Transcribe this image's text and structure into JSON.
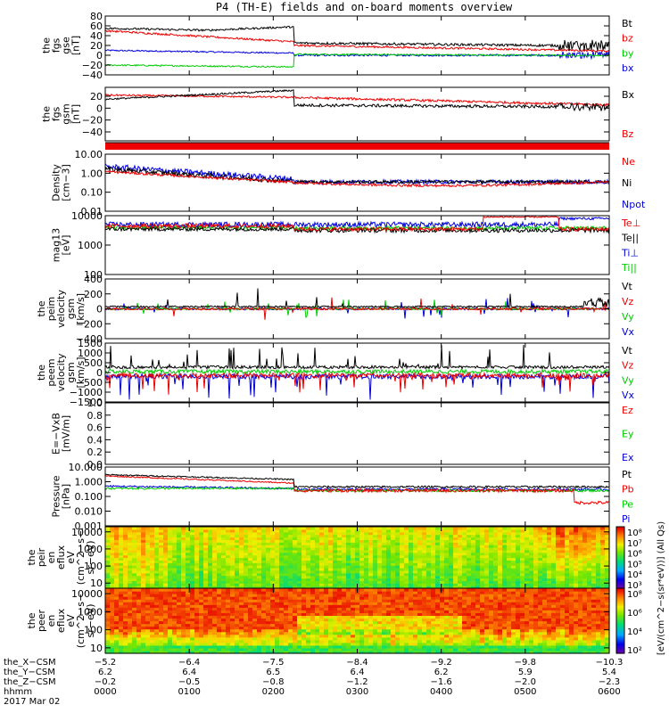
{
  "title": "P4 (TH-E) fields and on-board moments overview",
  "colors": {
    "black": "#000000",
    "red": "#ee0000",
    "green": "#00cc00",
    "blue": "#0000dd",
    "darkred": "#990000"
  },
  "chart_data": [
    {
      "type": "line",
      "id": "fgs_gse",
      "ylabel": [
        "the",
        "fgs",
        "gse",
        "[nT]"
      ],
      "ylim": [
        -40,
        80
      ],
      "yticks": [
        "80",
        "60",
        "40",
        "20",
        "0",
        "−20",
        "−40"
      ],
      "ytick_values": [
        80,
        60,
        40,
        20,
        0,
        -20,
        -40
      ],
      "legend": [
        {
          "name": "Bt",
          "color": "black"
        },
        {
          "name": "bz",
          "color": "red"
        },
        {
          "name": "by",
          "color": "green"
        },
        {
          "name": "bx",
          "color": "blue"
        }
      ]
    },
    {
      "type": "line",
      "id": "fgs_gsm",
      "ylabel": [
        "the",
        "fgs",
        "gsm",
        "[nT]"
      ],
      "ylim": [
        -55,
        35
      ],
      "yticks": [
        "20",
        "0",
        "−20",
        "−40"
      ],
      "ytick_values": [
        20,
        0,
        -20,
        -40
      ],
      "legend": [
        {
          "name": "Bx",
          "color": "black"
        },
        {
          "name": "Bz",
          "color": "red"
        }
      ]
    },
    {
      "type": "line",
      "id": "density",
      "ylabel": [
        "Density",
        "[cm−3]"
      ],
      "scale": "log",
      "ylim": [
        0.01,
        10
      ],
      "yticks": [
        "10.00",
        "1.00",
        "0.10",
        "0.01"
      ],
      "ytick_values": [
        10,
        1,
        0.1,
        0.01
      ],
      "legend": [
        {
          "name": "Ne",
          "color": "red"
        },
        {
          "name": "Ni",
          "color": "black"
        },
        {
          "name": "Npot",
          "color": "blue"
        }
      ]
    },
    {
      "type": "line",
      "id": "temperature",
      "ylabel": [
        "mag13",
        "[eV]"
      ],
      "scale": "log",
      "ylim": [
        100,
        10000
      ],
      "yticks": [
        "10000",
        "1000",
        "100"
      ],
      "ytick_values": [
        10000,
        1000,
        100
      ],
      "legend": [
        {
          "name": "Te⊥",
          "color": "red"
        },
        {
          "name": "Te||",
          "color": "black"
        },
        {
          "name": "Ti⊥",
          "color": "blue"
        },
        {
          "name": "Ti||",
          "color": "green"
        }
      ]
    },
    {
      "type": "line",
      "id": "peim_velocity",
      "ylabel": [
        "the",
        "peim",
        "velocity",
        "gsm",
        "[km/s]"
      ],
      "ylim": [
        -400,
        400
      ],
      "yticks": [
        "400",
        "200",
        "0",
        "−200",
        "−400"
      ],
      "ytick_values": [
        400,
        200,
        0,
        -200,
        -400
      ],
      "legend": [
        {
          "name": "Vt",
          "color": "black"
        },
        {
          "name": "Vz",
          "color": "red"
        },
        {
          "name": "Vy",
          "color": "green"
        },
        {
          "name": "Vx",
          "color": "blue"
        }
      ]
    },
    {
      "type": "line",
      "id": "peem_velocity",
      "ylabel": [
        "the",
        "peem",
        "velocity",
        "gsm",
        "[km/s]"
      ],
      "ylim": [
        -1500,
        1500
      ],
      "yticks": [
        "1500",
        "1000",
        "500",
        "0",
        "−500",
        "−1000",
        "−1500"
      ],
      "ytick_values": [
        1500,
        1000,
        500,
        0,
        -500,
        -1000,
        -1500
      ],
      "legend": [
        {
          "name": "Vt",
          "color": "black"
        },
        {
          "name": "Vz",
          "color": "red"
        },
        {
          "name": "Vy",
          "color": "green"
        },
        {
          "name": "Vx",
          "color": "blue"
        }
      ]
    },
    {
      "type": "line",
      "id": "efield",
      "ylabel": [
        "E=−VxB",
        "[mV/m]"
      ],
      "ylim": [
        0,
        1
      ],
      "yticks": [
        "1.0",
        "0.8",
        "0.6",
        "0.4",
        "0.2",
        "0.0"
      ],
      "ytick_values": [
        1,
        0.8,
        0.6,
        0.4,
        0.2,
        0
      ],
      "legend": [
        {
          "name": "Ez",
          "color": "red"
        },
        {
          "name": "Ey",
          "color": "green"
        },
        {
          "name": "Ex",
          "color": "blue"
        }
      ]
    },
    {
      "type": "line",
      "id": "pressure",
      "ylabel": [
        "Pressure",
        "[nPa]"
      ],
      "scale": "log",
      "ylim": [
        0.001,
        10
      ],
      "yticks": [
        "10.000",
        "1.000",
        "0.100",
        "0.010",
        "0.001"
      ],
      "ytick_values": [
        10,
        1,
        0.1,
        0.01,
        0.001
      ],
      "legend": [
        {
          "name": "Pt",
          "color": "black"
        },
        {
          "name": "Pb",
          "color": "red"
        },
        {
          "name": "Pe",
          "color": "green"
        },
        {
          "name": "Pi",
          "color": "blue"
        }
      ]
    },
    {
      "type": "heatmap",
      "id": "peir_eflux",
      "ylabel": [
        "the",
        "peir",
        "en",
        "eflux",
        "eV",
        "(cm^2−s−",
        "sr−eV)"
      ],
      "scale": "log",
      "ylim": [
        5,
        20000
      ],
      "yticks": [
        "10000",
        "1000",
        "100",
        "10"
      ],
      "ytick_values": [
        10000,
        1000,
        100,
        10
      ],
      "colorbar": {
        "ticks": [
          "10⁸",
          "10⁷",
          "10⁶",
          "10⁵",
          "10⁴",
          "10³"
        ]
      }
    },
    {
      "type": "heatmap",
      "id": "peer_eflux",
      "ylabel": [
        "the",
        "peer",
        "en",
        "eflux",
        "eV",
        "(cm^2−s−",
        "sr−eV)"
      ],
      "scale": "log",
      "ylim": [
        5,
        20000
      ],
      "yticks": [
        "10000",
        "1000",
        "100",
        "10"
      ],
      "ytick_values": [
        10000,
        1000,
        100,
        10
      ],
      "colorbar": {
        "ticks": [
          "10⁸",
          "10⁶",
          "10⁴",
          "10²"
        ]
      }
    }
  ],
  "colorbar_label": "[eV/(cm^2−s(sr*eV))] (All Qs)",
  "xaxis": {
    "rows": [
      {
        "label": "the_X−CSM",
        "values": [
          "−5.2",
          "−6.4",
          "−7.5",
          "−8.4",
          "−9.2",
          "−9.8",
          "−10.3"
        ]
      },
      {
        "label": "the_Y−CSM",
        "values": [
          "6.2",
          "6.4",
          "6.5",
          "6.4",
          "6.2",
          "5.9",
          "5.4"
        ]
      },
      {
        "label": "the_Z−CSM",
        "values": [
          "−0.2",
          "−0.5",
          "−0.8",
          "−1.2",
          "−1.6",
          "−2.0",
          "−2.3"
        ]
      },
      {
        "label": "hhmm",
        "values": [
          "0000",
          "0100",
          "0200",
          "0300",
          "0400",
          "0500",
          "0600"
        ]
      }
    ],
    "date": "2017 Mar 02"
  }
}
